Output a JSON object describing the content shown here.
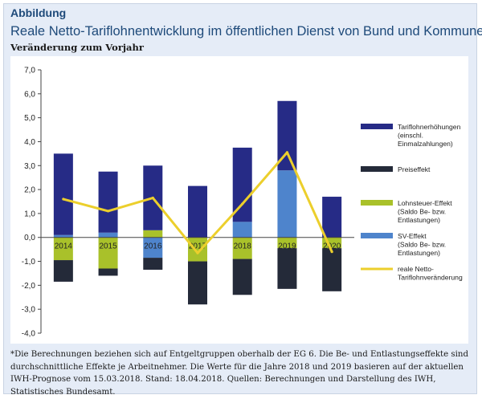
{
  "header": {
    "kicker": "Abbildung",
    "title": "Reale Netto-Tariflohnentwicklung im öffentlichen Dienst von Bund und Kommunen*",
    "subtitle": "Veränderung zum Vorjahr"
  },
  "footnote": "*Die Berechnungen beziehen sich auf Entgeltgruppen oberhalb der EG 6. Die Be- und Entlastungseffekte sind durchschnittliche Effekte je Arbeitnehmer. Die Werte für die Jahre 2018 und 2019 basieren auf der aktuellen IWH-Prognose vom 15.03.2018. Stand: 18.04.2018. Quellen: Berechnungen und Darstellung des IWH, Statistisches Bundesamt.",
  "colors": {
    "tarif": "#262b86",
    "preis": "#242a39",
    "lohnsteuer": "#a9c12a",
    "sv": "#4e84cc",
    "line": "#eccf2c",
    "background": "#e5ecf7",
    "title": "#1e4a7a"
  },
  "chart_data": {
    "type": "bar",
    "stacked": true,
    "categories": [
      "2014",
      "2015",
      "2016",
      "2017",
      "2018",
      "2019",
      "2020"
    ],
    "series": [
      {
        "name": "Tariflohnerhöhungen (einschl. Einmalzahlungen)",
        "values": [
          3.4,
          2.55,
          2.7,
          2.15,
          3.1,
          2.9,
          1.7
        ]
      },
      {
        "name": "Preiseffekt",
        "values": [
          -0.9,
          -0.3,
          -0.5,
          -1.8,
          -1.5,
          -1.7,
          -1.8
        ]
      },
      {
        "name": "Lohnsteuer-Effekt (Saldo Be- bzw. Entlastungen)",
        "values": [
          -0.95,
          -1.3,
          0.3,
          -1.0,
          -0.9,
          -0.45,
          -0.45
        ]
      },
      {
        "name": "SV-Effekt (Saldo Be- bzw. Entlastungen)",
        "values": [
          0.1,
          0.2,
          -0.85,
          0.0,
          0.65,
          2.8,
          0.0
        ]
      },
      {
        "name": "reale Netto-Tariflohnveränderung",
        "type": "line",
        "values": [
          1.6,
          1.1,
          1.65,
          -0.65,
          1.4,
          3.55,
          -0.6
        ]
      }
    ],
    "yticks": [
      "-4,0",
      "-3,0",
      "-2,0",
      "-1,0",
      "0,0",
      "1,0",
      "2,0",
      "3,0",
      "4,0",
      "5,0",
      "6,0",
      "7,0"
    ],
    "ylim": [
      -4,
      7
    ],
    "grid": false,
    "legend_position": "right"
  }
}
